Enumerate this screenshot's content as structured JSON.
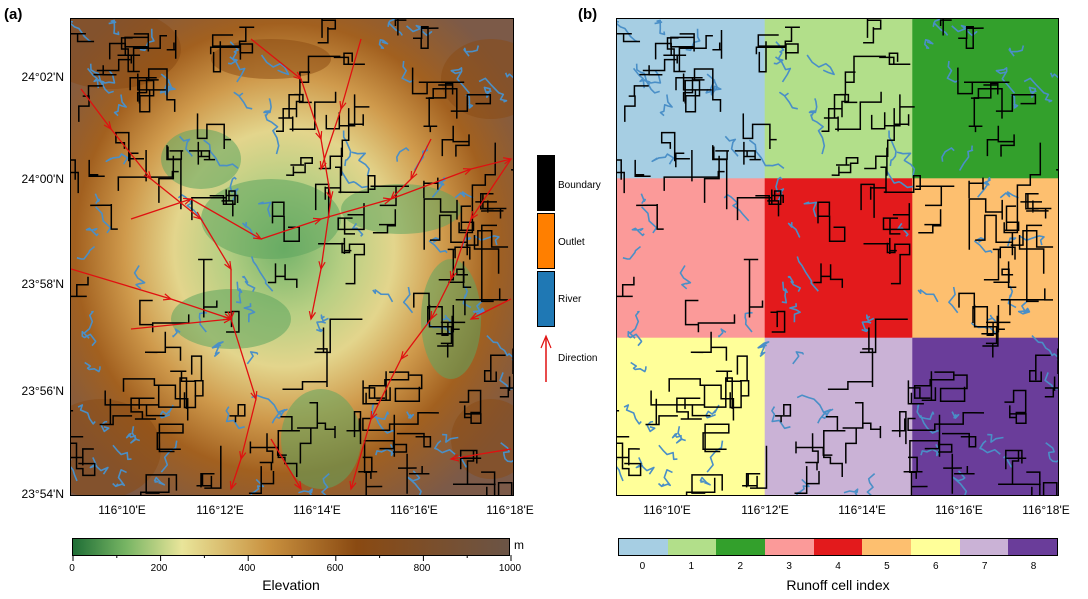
{
  "panel_a": {
    "label": "(a)",
    "lat_labels": [
      "24°02'N",
      "24°00'N",
      "23°58'N",
      "23°56'N",
      "23°54'N"
    ],
    "lon_labels": [
      "116°10'E",
      "116°12'E",
      "116°14'E",
      "116°16'E",
      "116°18'E"
    ],
    "colorbar": {
      "title": "Elevation",
      "unit": "m",
      "ticks": [
        "0",
        "200",
        "400",
        "600",
        "800",
        "1000"
      ],
      "range": [
        0,
        1000
      ],
      "colors": [
        "#1f6e36",
        "#76b463",
        "#e9e59a",
        "#c9913f",
        "#8a4a12",
        "#6b5446"
      ]
    }
  },
  "panel_b": {
    "label": "(b)",
    "lon_labels": [
      "116°10'E",
      "116°12'E",
      "116°14'E",
      "116°16'E",
      "116°18'E"
    ],
    "colorbar": {
      "title": "Runoff cell index",
      "ticks": [
        "0",
        "1",
        "2",
        "3",
        "4",
        "5",
        "6",
        "7",
        "8"
      ],
      "colors": [
        "#a6cee3",
        "#b2df8a",
        "#33a02c",
        "#fb9a99",
        "#e31a1c",
        "#fdbf6f",
        "#ffff99",
        "#cab2d6",
        "#6a3d9a"
      ]
    }
  },
  "legend": {
    "items": [
      {
        "label": "Boundary",
        "color": "#000000"
      },
      {
        "label": "Outlet",
        "color": "#ff7f00"
      },
      {
        "label": "River",
        "color": "#1f78b4"
      },
      {
        "label": "Direction",
        "color": "#e31a1c"
      }
    ]
  },
  "colors": {
    "river": "#4a8fc7",
    "boundary": "#000000",
    "direction": "#e01010"
  }
}
